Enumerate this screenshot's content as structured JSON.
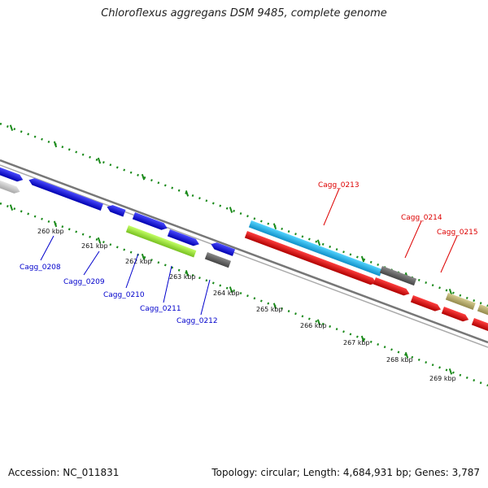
{
  "title": "Chloroflexus aggregans DSM 9485, complete genome",
  "accession": "Accession: NC_011831",
  "summary": "Topology: circular; Length: 4,684,931 bp; Genes: 3,787",
  "colors": {
    "backbone": "#8a8a8a",
    "tick": "#1a8a1a",
    "blue": "#0000ee",
    "red": "#ee0000",
    "lightblue": "#22bbee",
    "lime": "#99ee33",
    "darkgray": "#666666",
    "lightgray": "#c8c8c8",
    "khaki": "#bbb070",
    "label_blue": "#0000cc",
    "label_red": "#dd0000"
  },
  "kbp_labels": [
    "260 kbp",
    "261 kbp",
    "262 kbp",
    "263 kbp",
    "264 kbp",
    "265 kbp",
    "266 kbp",
    "267 kbp",
    "268 kbp",
    "269 kbp"
  ],
  "gene_labels_bottom": [
    "Cagg_0208",
    "Cagg_0209",
    "Cagg_0210",
    "Cagg_0211",
    "Cagg_0212"
  ],
  "gene_labels_top": [
    "Cagg_0213",
    "Cagg_0214",
    "Cagg_0215"
  ]
}
